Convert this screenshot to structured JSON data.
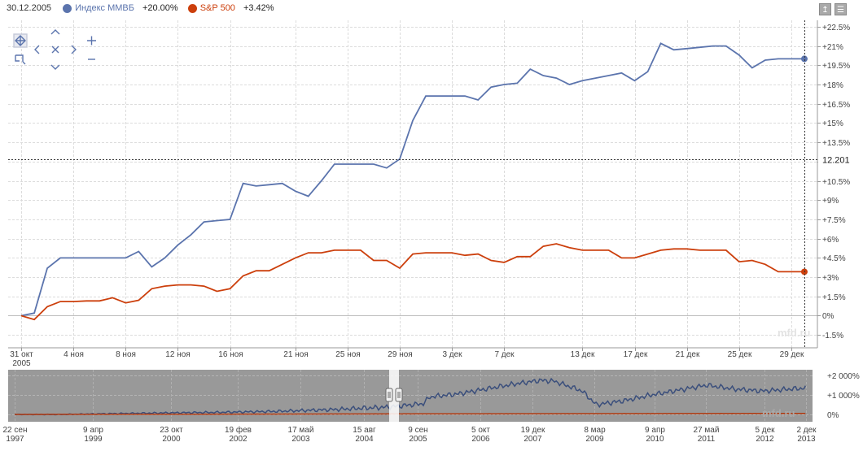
{
  "header": {
    "date": "30.12.2005",
    "legend": [
      {
        "name": "Индекс ММВБ",
        "value": "+20.00%",
        "color": "#5b74ad"
      },
      {
        "name": "S&P 500",
        "value": "+3.42%",
        "color": "#cc3f0c"
      }
    ]
  },
  "toolbar": {
    "export_icon": "export-icon",
    "menu_icon": "menu-icon"
  },
  "nav_controls": [
    "pan-icon",
    "chevron-up-icon",
    "chevron-left-icon",
    "reset-icon",
    "chevron-right-icon",
    "chevron-down-icon",
    "zoom-in-icon",
    "zoom-out-icon",
    "zoom-box-icon"
  ],
  "crosshair": {
    "label": "12.201"
  },
  "watermark": "mfd.ru",
  "navigator": {
    "y_ticks": [
      {
        "v": 2000,
        "label": "+2 000%"
      },
      {
        "v": 1000,
        "label": "+1 000%"
      },
      {
        "v": 0,
        "label": "0%"
      }
    ],
    "x_ticks": [
      {
        "day": 0,
        "l1": "22 сен",
        "l2": "1997"
      },
      {
        "day": 565,
        "l1": "9 апр",
        "l2": "1999"
      },
      {
        "day": 1127,
        "l1": "23 окт",
        "l2": "2000"
      },
      {
        "day": 1611,
        "l1": "19 фев",
        "l2": "2002"
      },
      {
        "day": 2063,
        "l1": "17 май",
        "l2": "2003"
      },
      {
        "day": 2520,
        "l1": "15 авг",
        "l2": "2004"
      },
      {
        "day": 2909,
        "l1": "9 сен",
        "l2": "2005"
      },
      {
        "day": 3362,
        "l1": "5 окт",
        "l2": "2006"
      },
      {
        "day": 3740,
        "l1": "19 дек",
        "l2": "2007"
      },
      {
        "day": 4185,
        "l1": "8 мар",
        "l2": "2009"
      },
      {
        "day": 4624,
        "l1": "9 апр",
        "l2": "2010"
      },
      {
        "day": 4990,
        "l1": "27 май",
        "l2": "2011"
      },
      {
        "day": 5418,
        "l1": "5 дек",
        "l2": "2012"
      },
      {
        "day": 5716,
        "l1": "2 дек",
        "l2": "2013"
      }
    ],
    "mmvb_path": [
      [
        0,
        0
      ],
      [
        300,
        -5
      ],
      [
        700,
        40
      ],
      [
        1100,
        80
      ],
      [
        1500,
        110
      ],
      [
        1900,
        160
      ],
      [
        2300,
        250
      ],
      [
        2700,
        380
      ],
      [
        2950,
        550
      ],
      [
        3000,
        900
      ],
      [
        3200,
        1050
      ],
      [
        3400,
        1300
      ],
      [
        3600,
        1550
      ],
      [
        3800,
        1750
      ],
      [
        3900,
        1700
      ],
      [
        4100,
        1200
      ],
      [
        4200,
        500
      ],
      [
        4400,
        700
      ],
      [
        4600,
        1000
      ],
      [
        4800,
        1250
      ],
      [
        5000,
        1500
      ],
      [
        5200,
        1300
      ],
      [
        5400,
        1200
      ],
      [
        5600,
        1300
      ],
      [
        5716,
        1350
      ]
    ],
    "sp_path": [
      [
        0,
        0
      ],
      [
        2000,
        20
      ],
      [
        4000,
        40
      ],
      [
        5716,
        50
      ]
    ]
  },
  "chart_data": {
    "type": "line",
    "title": "",
    "x_ticks": [
      {
        "day": 0,
        "l1": "31 окт",
        "l2": "2005"
      },
      {
        "day": 4,
        "l1": "4 ноя",
        "l2": ""
      },
      {
        "day": 8,
        "l1": "8 ноя",
        "l2": ""
      },
      {
        "day": 12,
        "l1": "12 ноя",
        "l2": ""
      },
      {
        "day": 16,
        "l1": "16 ноя",
        "l2": ""
      },
      {
        "day": 21,
        "l1": "21 ноя",
        "l2": ""
      },
      {
        "day": 25,
        "l1": "25 ноя",
        "l2": ""
      },
      {
        "day": 29,
        "l1": "29 ноя",
        "l2": ""
      },
      {
        "day": 33,
        "l1": "3 дек",
        "l2": ""
      },
      {
        "day": 37,
        "l1": "7 дек",
        "l2": ""
      },
      {
        "day": 43,
        "l1": "13 дек",
        "l2": ""
      },
      {
        "day": 47,
        "l1": "17 дек",
        "l2": ""
      },
      {
        "day": 51,
        "l1": "21 дек",
        "l2": ""
      },
      {
        "day": 55,
        "l1": "25 дек",
        "l2": ""
      },
      {
        "day": 59,
        "l1": "29 дек",
        "l2": ""
      }
    ],
    "y_ticks": [
      22.5,
      21,
      19.5,
      18,
      16.5,
      15,
      13.5,
      12,
      10.5,
      9,
      7.5,
      6,
      4.5,
      3,
      1.5,
      0,
      -1.5
    ],
    "y_tick_labels": [
      "+22.5%",
      "+21%",
      "+19.5%",
      "+18%",
      "+16.5%",
      "+15%",
      "+13.5%",
      "+12%",
      "+10.5%",
      "+9%",
      "+7.5%",
      "+6%",
      "+4.5%",
      "+3%",
      "+1.5%",
      "0%",
      "-1.5%"
    ],
    "ylim": [
      -2.5,
      23
    ],
    "xlim": [
      -1,
      61
    ],
    "crosshair_x_day": 60,
    "crosshair_y": 12.201,
    "series": [
      {
        "name": "Индекс ММВБ",
        "color": "#5b74ad",
        "x": [
          0,
          1,
          2,
          3,
          4,
          5,
          6,
          7,
          8,
          9,
          10,
          11,
          12,
          13,
          14,
          15,
          16,
          17,
          18,
          19,
          20,
          21,
          22,
          23,
          24,
          25,
          26,
          27,
          28,
          29,
          30,
          31,
          32,
          33,
          34,
          35,
          36,
          37,
          38,
          39,
          40,
          41,
          42,
          43,
          44,
          45,
          46,
          47,
          48,
          49,
          50,
          51,
          52,
          53,
          54,
          55,
          56,
          57,
          58,
          59,
          60
        ],
        "values": [
          0.0,
          0.2,
          3.7,
          4.5,
          4.5,
          4.5,
          4.5,
          4.5,
          4.5,
          5.0,
          3.8,
          4.5,
          5.5,
          6.3,
          7.3,
          7.4,
          7.5,
          10.3,
          10.1,
          10.2,
          10.3,
          9.7,
          9.3,
          10.5,
          11.8,
          11.8,
          11.8,
          11.8,
          11.5,
          12.2,
          15.2,
          17.1,
          17.1,
          17.1,
          17.1,
          16.8,
          17.8,
          18.0,
          18.1,
          19.2,
          18.7,
          18.5,
          18.0,
          18.3,
          18.5,
          18.7,
          18.9,
          18.3,
          19.0,
          21.2,
          20.7,
          20.8,
          20.9,
          21.0,
          21.0,
          20.3,
          19.3,
          19.9,
          20.0,
          20.0,
          20.0
        ]
      },
      {
        "name": "S&P 500",
        "color": "#cc3f0c",
        "x": [
          0,
          1,
          2,
          3,
          4,
          5,
          6,
          7,
          8,
          9,
          10,
          11,
          12,
          13,
          14,
          15,
          16,
          17,
          18,
          19,
          20,
          21,
          22,
          23,
          24,
          25,
          26,
          27,
          28,
          29,
          30,
          31,
          32,
          33,
          34,
          35,
          36,
          37,
          38,
          39,
          40,
          41,
          42,
          43,
          44,
          45,
          46,
          47,
          48,
          49,
          50,
          51,
          52,
          53,
          54,
          55,
          56,
          57,
          58,
          59,
          60
        ],
        "values": [
          0.0,
          -0.3,
          0.7,
          1.1,
          1.1,
          1.15,
          1.15,
          1.4,
          1.0,
          1.2,
          2.1,
          2.3,
          2.4,
          2.4,
          2.3,
          1.9,
          2.1,
          3.1,
          3.5,
          3.5,
          4.0,
          4.5,
          4.9,
          4.9,
          5.1,
          5.1,
          5.1,
          4.3,
          4.3,
          3.7,
          4.8,
          4.9,
          4.9,
          4.9,
          4.7,
          4.8,
          4.3,
          4.15,
          4.6,
          4.6,
          5.4,
          5.6,
          5.3,
          5.1,
          5.1,
          5.1,
          4.5,
          4.5,
          4.8,
          5.1,
          5.2,
          5.2,
          5.1,
          5.1,
          5.1,
          4.2,
          4.3,
          4.0,
          3.42,
          3.42,
          3.42
        ]
      }
    ]
  }
}
